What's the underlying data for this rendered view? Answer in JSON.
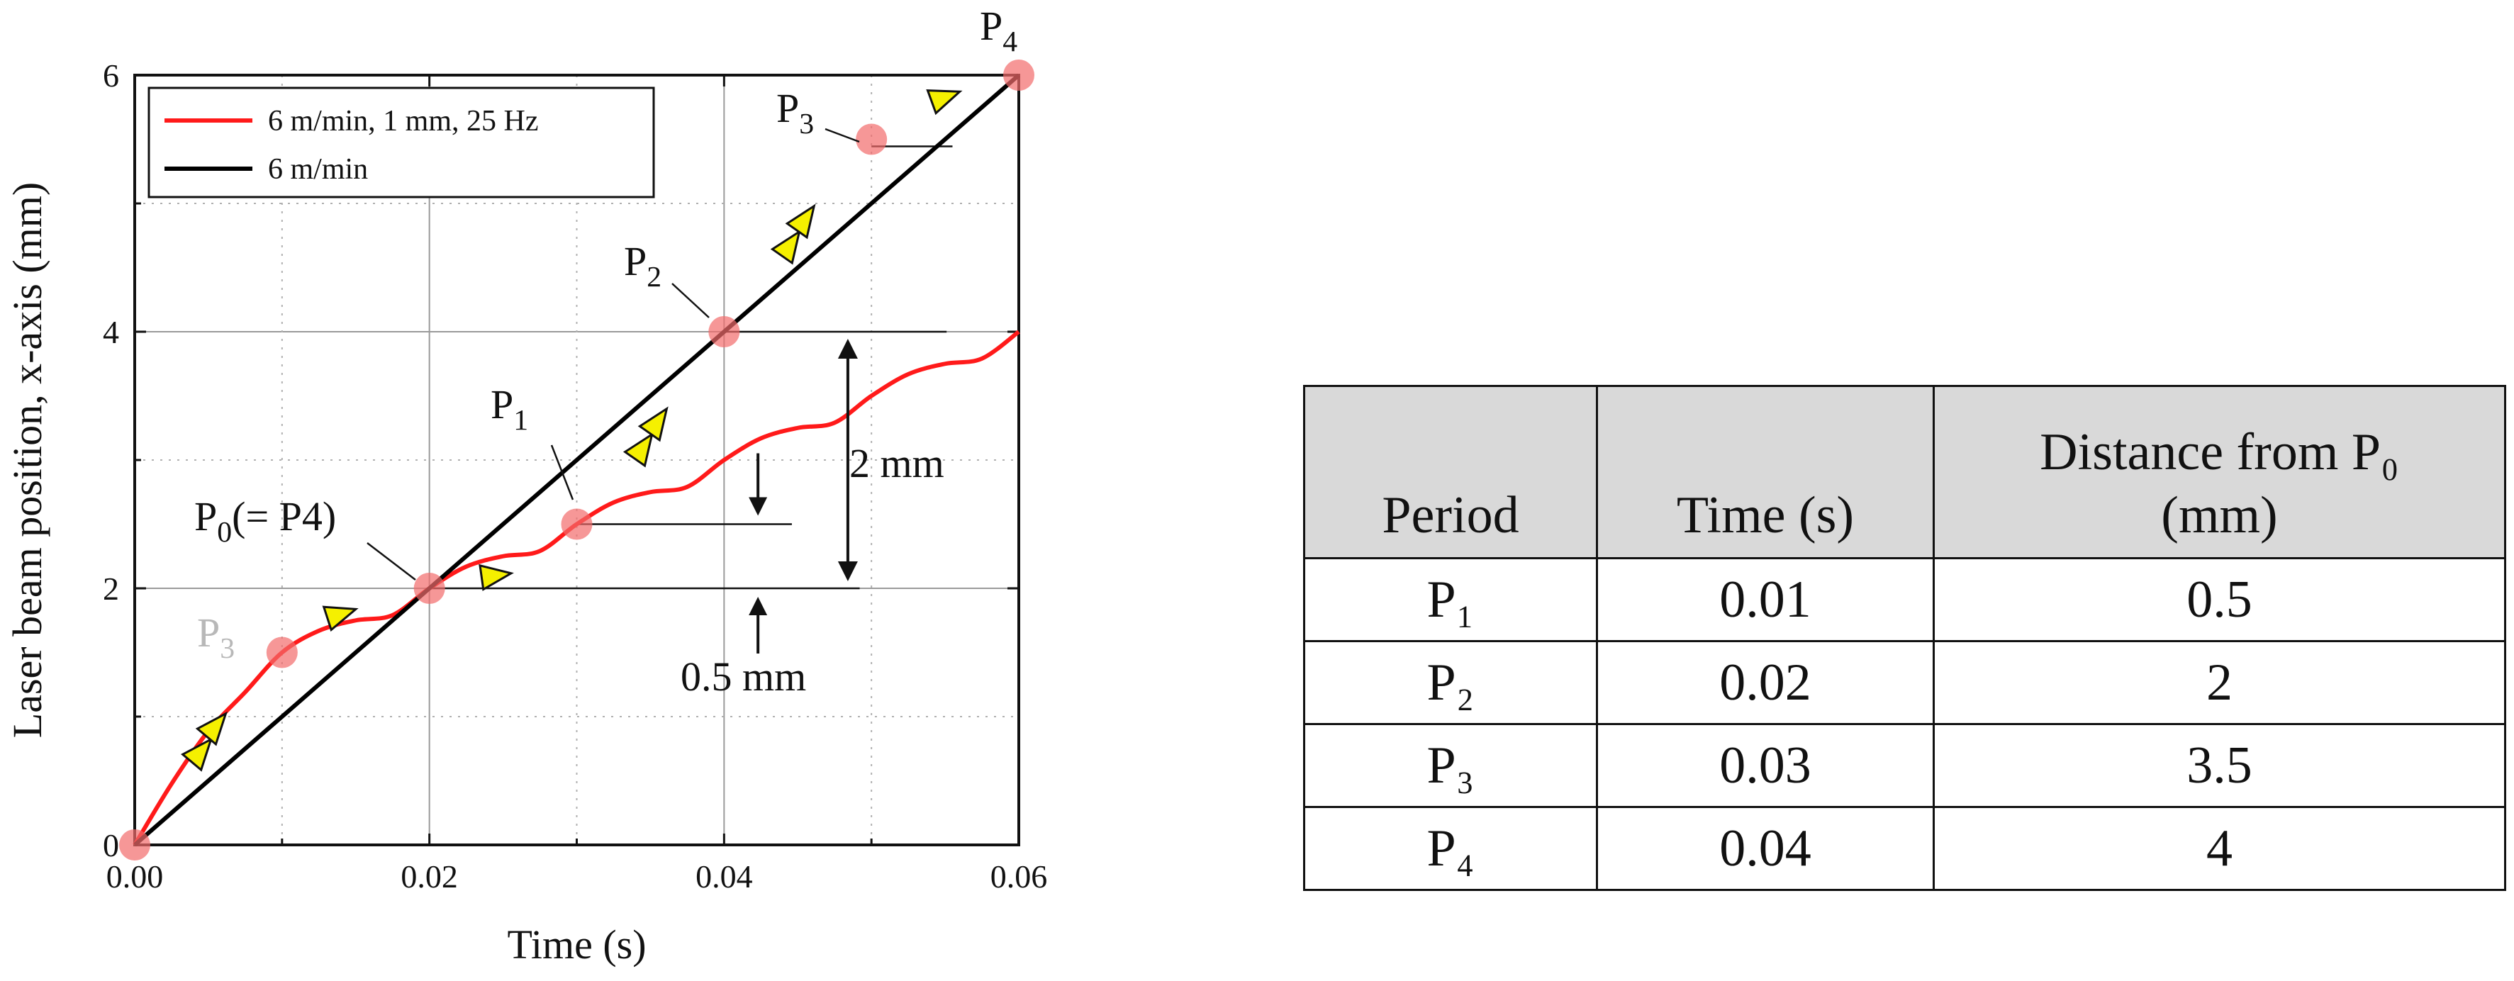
{
  "chart_data": {
    "type": "line",
    "xlabel": "Time (s)",
    "ylabel": "Laser beam position, x-axis (mm)",
    "xlim": [
      0,
      0.06
    ],
    "ylim": [
      0,
      6
    ],
    "x_ticks": [
      "0.00",
      "0.02",
      "0.04",
      "0.06"
    ],
    "y_ticks": [
      "0",
      "2",
      "4",
      "6"
    ],
    "grid": true,
    "legend_position": "top-left",
    "series": [
      {
        "name": "6 m/min, 1 mm, 25 Hz",
        "color": "#ff1a1a",
        "x": [
          0,
          0.0025,
          0.005,
          0.0075,
          0.01,
          0.0125,
          0.015,
          0.0175,
          0.02,
          0.0225,
          0.025,
          0.0275,
          0.03,
          0.0325,
          0.035,
          0.0375,
          0.04,
          0.0425,
          0.045,
          0.0475,
          0.05,
          0.0525,
          0.055,
          0.0575,
          0.06
        ],
        "y": [
          0,
          0.476,
          0.888,
          1.191,
          1.5,
          1.669,
          1.75,
          1.791,
          2,
          2.169,
          2.25,
          2.291,
          2.5,
          2.669,
          2.75,
          2.791,
          3,
          3.169,
          3.25,
          3.291,
          3.5,
          3.669,
          3.75,
          3.791,
          4
        ]
      },
      {
        "name": "6 m/min",
        "color": "#000000",
        "x": [
          0,
          0.06
        ],
        "y": [
          0,
          6
        ]
      }
    ],
    "points": [
      {
        "label": "P0",
        "x": 0,
        "y": 0
      },
      {
        "label": "P3",
        "x": 0.01,
        "y": 1.5
      },
      {
        "label": "P0(= P4)",
        "x": 0.02,
        "y": 2
      },
      {
        "label": "P1",
        "x": 0.03,
        "y": 2.5
      },
      {
        "label": "P2",
        "x": 0.04,
        "y": 4
      },
      {
        "label": "P3",
        "x": 0.05,
        "y": 5.5
      },
      {
        "label": "P4",
        "x": 0.06,
        "y": 6
      }
    ],
    "annotations": {
      "p4_top": "P4",
      "p3_top": "P3",
      "p2": "P2",
      "p1": "P1",
      "p0": "P0(= P4)",
      "p3_left": "P3",
      "two_mm": "2 mm",
      "half_mm": "0.5 mm"
    }
  },
  "table": {
    "headers": [
      "Period",
      "Time (s)",
      "Distance from P0 (mm)"
    ],
    "header_line1": "Distance from P₀",
    "header_line2": "(mm)",
    "rows": [
      [
        "P₁",
        "0.01",
        "0.5"
      ],
      [
        "P₂",
        "0.02",
        "2"
      ],
      [
        "P₃",
        "0.03",
        "3.5"
      ],
      [
        "P₄",
        "0.04",
        "4"
      ]
    ]
  }
}
